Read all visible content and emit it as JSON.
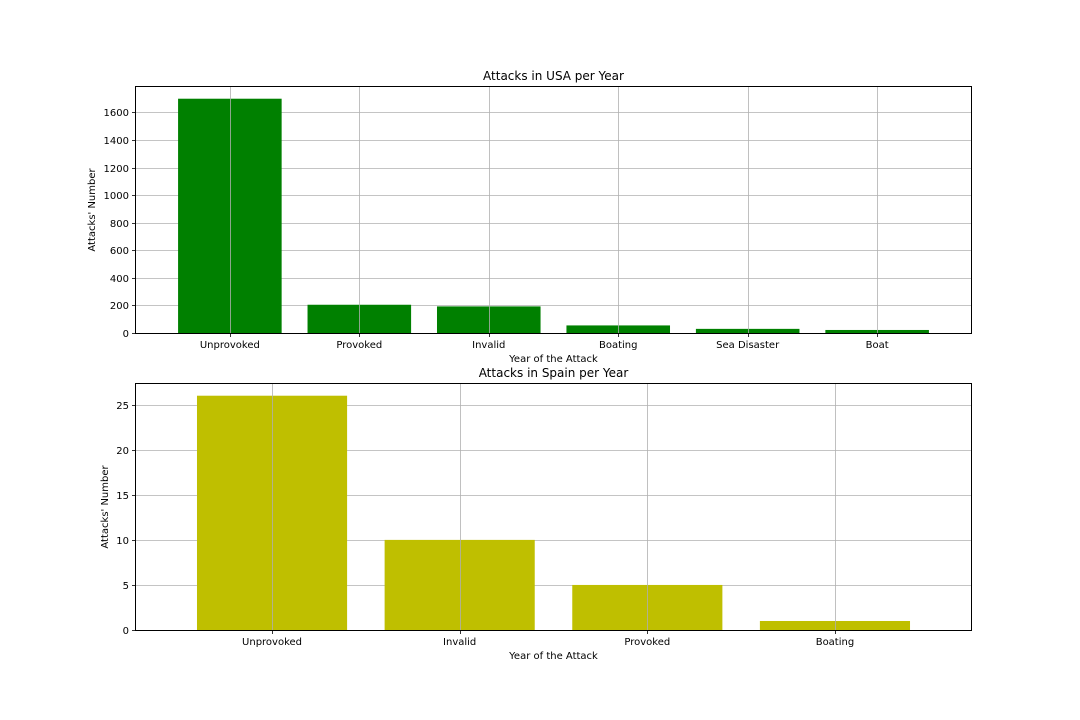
{
  "chart_data": [
    {
      "type": "bar",
      "title": "Attacks in USA per Year",
      "xlabel": "Year of the Attack",
      "ylabel": "Attacks' Number",
      "categories": [
        "Unprovoked",
        "Provoked",
        "Invalid",
        "Boating",
        "Sea Disaster",
        "Boat"
      ],
      "values": [
        1700,
        205,
        193,
        55,
        30,
        22
      ],
      "ylim": [
        0,
        1785
      ],
      "yticks": [
        0,
        200,
        400,
        600,
        800,
        1000,
        1200,
        1400,
        1600
      ],
      "color": "#008000",
      "grid": true
    },
    {
      "type": "bar",
      "title": "Attacks in Spain per Year",
      "xlabel": "Year of the Attack",
      "ylabel": "Attacks' Number",
      "categories": [
        "Unprovoked",
        "Invalid",
        "Provoked",
        "Boating"
      ],
      "values": [
        26,
        10,
        5,
        1
      ],
      "ylim": [
        0,
        27.3
      ],
      "yticks": [
        0,
        5,
        10,
        15,
        20,
        25
      ],
      "color": "#bfbf00",
      "grid": true
    }
  ]
}
